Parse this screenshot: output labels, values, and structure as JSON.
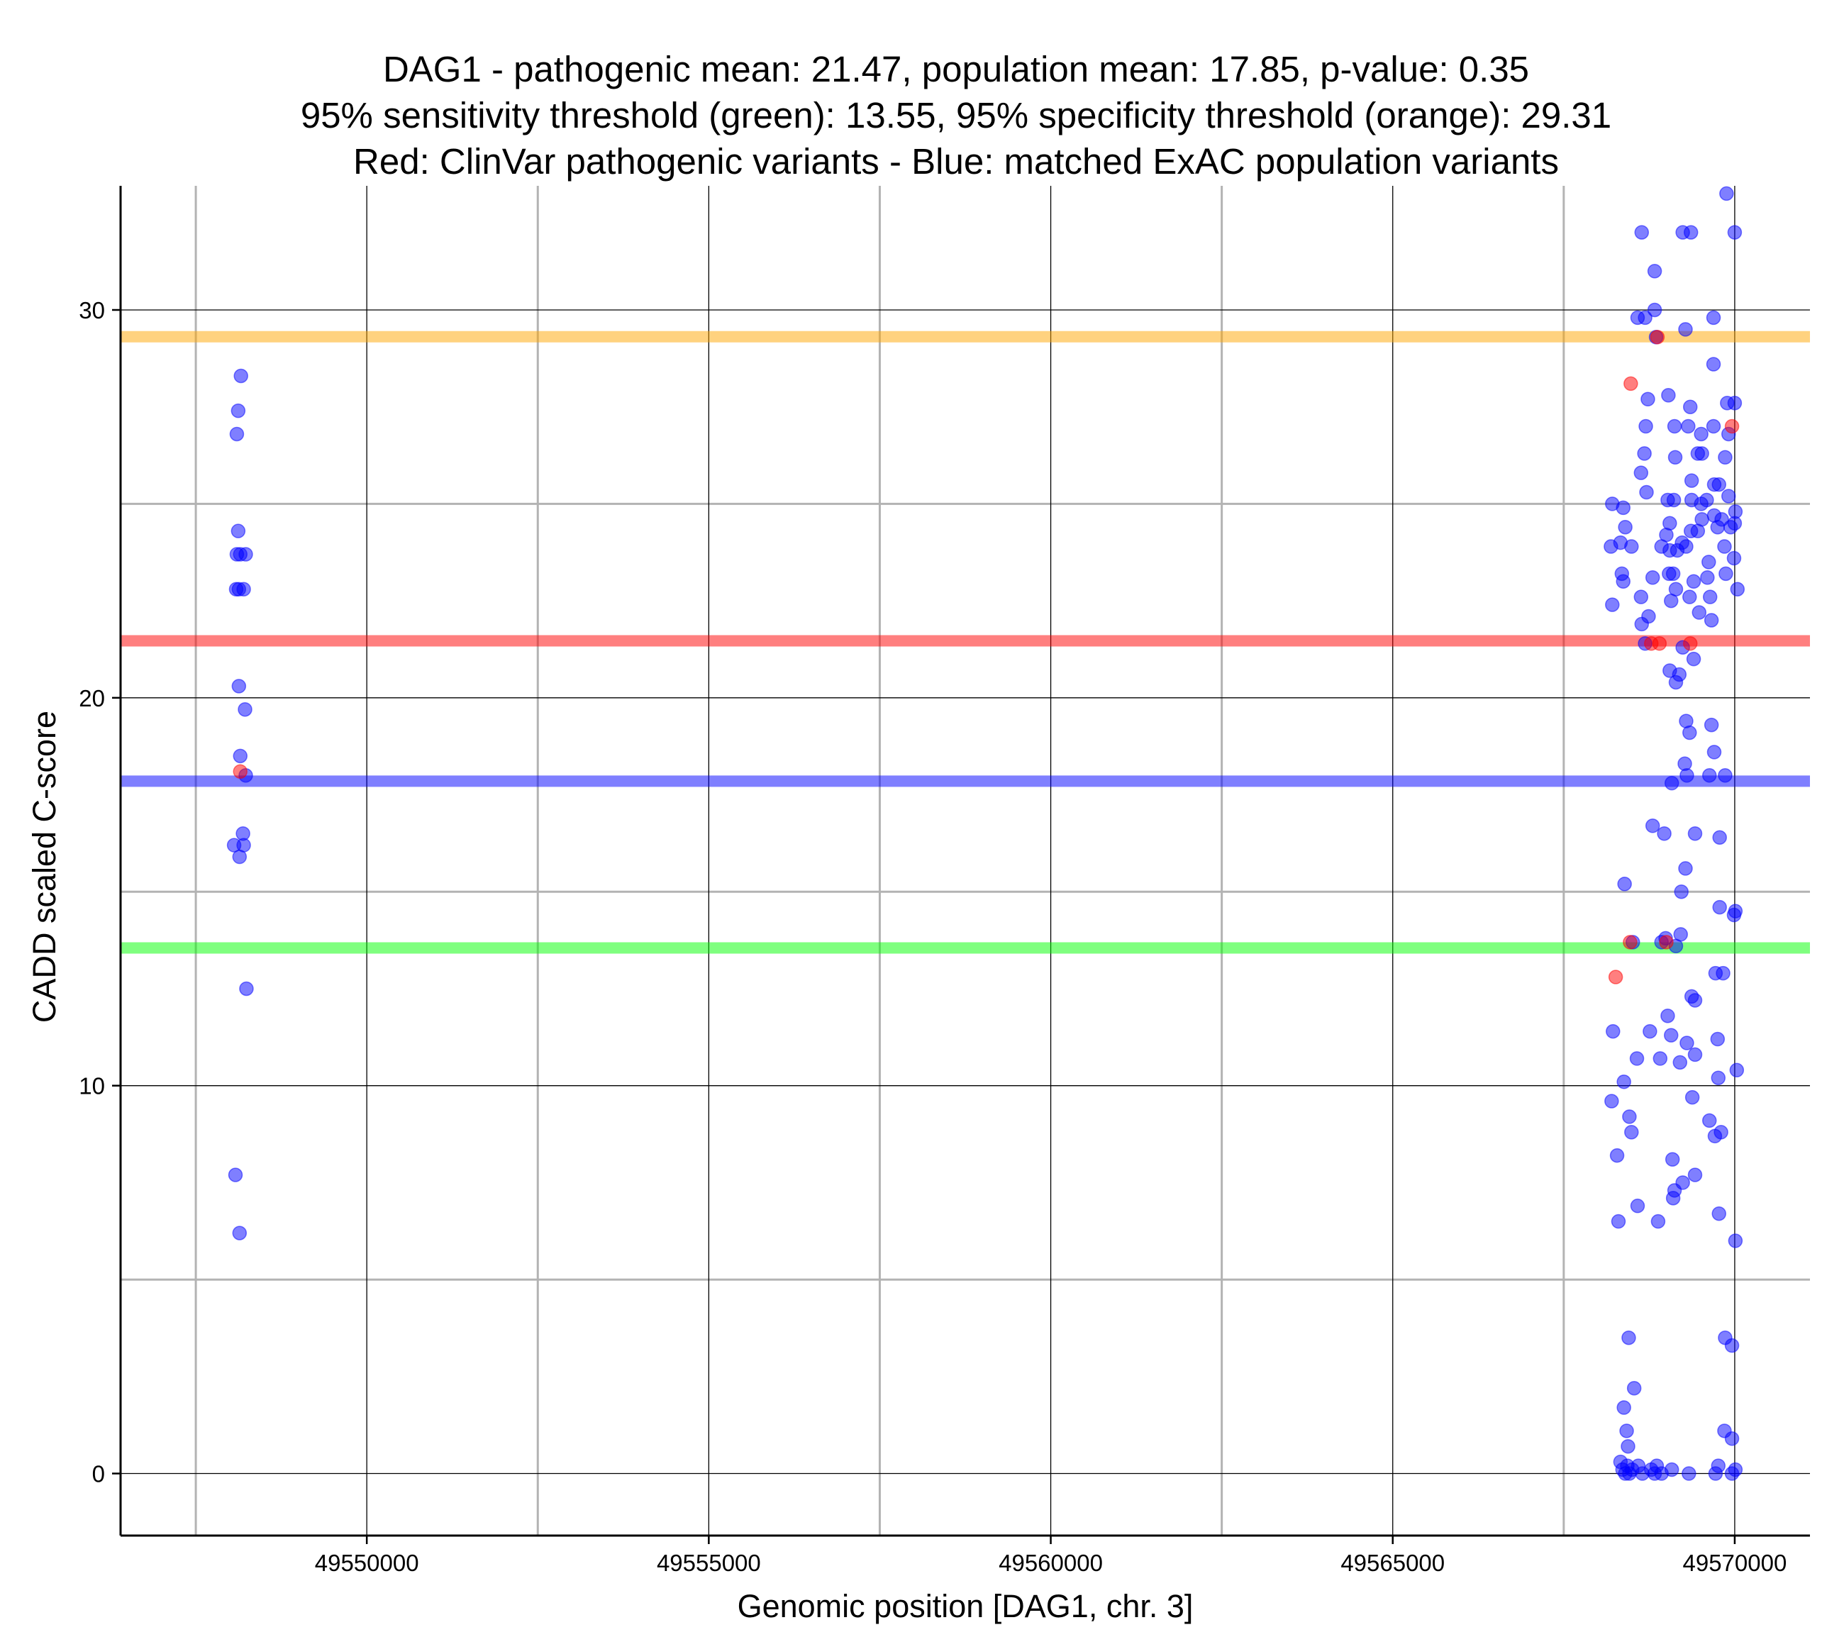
{
  "chart_data": {
    "type": "scatter",
    "title_lines": [
      "DAG1 - pathogenic mean: 21.47, population mean: 17.85, p-value: 0.35",
      "95% sensitivity threshold (green): 13.55, 95% specificity threshold (orange): 29.31",
      "Red: ClinVar pathogenic variants - Blue: matched ExAC population variants"
    ],
    "xlabel": "Genomic position [DAG1, chr. 3]",
    "ylabel": "CADD scaled C-score",
    "xlim": [
      49546400,
      49571100
    ],
    "ylim": [
      -1.6,
      33.2
    ],
    "x_ticks": [
      49550000,
      49555000,
      49560000,
      49565000,
      49570000
    ],
    "x_tick_labels": [
      "49550000",
      "49555000",
      "49560000",
      "49565000",
      "49570000"
    ],
    "x_minor_ticks": [
      49547500,
      49552500,
      49557500,
      49562500,
      49567500
    ],
    "y_ticks": [
      0,
      10,
      20,
      30
    ],
    "y_tick_labels": [
      "0",
      "10",
      "20",
      "30"
    ],
    "y_minor_ticks": [
      5,
      15,
      25
    ],
    "hlines": [
      {
        "name": "specificity-threshold",
        "value": 29.31,
        "color": "#FFA500"
      },
      {
        "name": "pathogenic-mean",
        "value": 21.47,
        "color": "#FF0000"
      },
      {
        "name": "population-mean",
        "value": 17.85,
        "color": "#0000FF"
      },
      {
        "name": "sensitivity-threshold",
        "value": 13.55,
        "color": "#00FF00"
      }
    ],
    "series": [
      {
        "name": "ClinVar pathogenic variants",
        "color": "#FF0000",
        "points": [
          [
            49548150,
            18.1
          ],
          [
            49568480,
            28.1
          ],
          [
            49568260,
            12.8
          ],
          [
            49568780,
            21.4
          ],
          [
            49568900,
            21.4
          ],
          [
            49569350,
            21.4
          ],
          [
            49569960,
            27.0
          ],
          [
            49568870,
            29.3
          ],
          [
            49568470,
            13.7
          ],
          [
            49569000,
            13.7
          ]
        ]
      },
      {
        "name": "matched ExAC population variants",
        "color": "#0000FF",
        "points": [
          [
            49548160,
            28.3
          ],
          [
            49548120,
            27.4
          ],
          [
            49548100,
            26.8
          ],
          [
            49548120,
            24.3
          ],
          [
            49548100,
            23.7
          ],
          [
            49548150,
            23.7
          ],
          [
            49548230,
            23.7
          ],
          [
            49548090,
            22.8
          ],
          [
            49548130,
            22.8
          ],
          [
            49548200,
            22.8
          ],
          [
            49548130,
            20.3
          ],
          [
            49548220,
            19.7
          ],
          [
            49548150,
            18.5
          ],
          [
            49548230,
            18.0
          ],
          [
            49548190,
            16.5
          ],
          [
            49548060,
            16.2
          ],
          [
            49548200,
            16.2
          ],
          [
            49548140,
            15.9
          ],
          [
            49548240,
            12.5
          ],
          [
            49548080,
            7.7
          ],
          [
            49548140,
            6.2
          ],
          [
            49570000,
            32.0
          ],
          [
            49569880,
            33.0
          ],
          [
            49568640,
            32.0
          ],
          [
            49569240,
            32.0
          ],
          [
            49569360,
            32.0
          ],
          [
            49568830,
            31.0
          ],
          [
            49568830,
            30.0
          ],
          [
            49568580,
            29.8
          ],
          [
            49568690,
            29.8
          ],
          [
            49569280,
            29.5
          ],
          [
            49569690,
            29.8
          ],
          [
            49568850,
            29.3
          ],
          [
            49569690,
            28.6
          ],
          [
            49568730,
            27.7
          ],
          [
            49569030,
            27.8
          ],
          [
            49569350,
            27.5
          ],
          [
            49569890,
            27.6
          ],
          [
            49570000,
            27.6
          ],
          [
            49568700,
            27.0
          ],
          [
            49569120,
            27.0
          ],
          [
            49569320,
            27.0
          ],
          [
            49569510,
            26.8
          ],
          [
            49569690,
            27.0
          ],
          [
            49569910,
            26.8
          ],
          [
            49568680,
            26.3
          ],
          [
            49569130,
            26.2
          ],
          [
            49569460,
            26.3
          ],
          [
            49569520,
            26.3
          ],
          [
            49569860,
            26.2
          ],
          [
            49568630,
            25.8
          ],
          [
            49569370,
            25.6
          ],
          [
            49569700,
            25.5
          ],
          [
            49568710,
            25.3
          ],
          [
            49569770,
            25.5
          ],
          [
            49568210,
            25.0
          ],
          [
            49568370,
            24.9
          ],
          [
            49569020,
            25.1
          ],
          [
            49569110,
            25.1
          ],
          [
            49569370,
            25.1
          ],
          [
            49569510,
            25.0
          ],
          [
            49569590,
            25.1
          ],
          [
            49569910,
            25.2
          ],
          [
            49568400,
            24.4
          ],
          [
            49569050,
            24.5
          ],
          [
            49569520,
            24.6
          ],
          [
            49569700,
            24.7
          ],
          [
            49569810,
            24.6
          ],
          [
            49570010,
            24.8
          ],
          [
            49569000,
            24.2
          ],
          [
            49569230,
            24.0
          ],
          [
            49569360,
            24.3
          ],
          [
            49569460,
            24.3
          ],
          [
            49569750,
            24.4
          ],
          [
            49569940,
            24.4
          ],
          [
            49570000,
            24.5
          ],
          [
            49568190,
            23.9
          ],
          [
            49568330,
            24.0
          ],
          [
            49568490,
            23.9
          ],
          [
            49568930,
            23.9
          ],
          [
            49569050,
            23.8
          ],
          [
            49569160,
            23.8
          ],
          [
            49569290,
            23.9
          ],
          [
            49569620,
            23.5
          ],
          [
            49569850,
            23.9
          ],
          [
            49569990,
            23.6
          ],
          [
            49568350,
            23.2
          ],
          [
            49568370,
            23.0
          ],
          [
            49568800,
            23.1
          ],
          [
            49569040,
            23.2
          ],
          [
            49569100,
            23.2
          ],
          [
            49569400,
            23.0
          ],
          [
            49569600,
            23.1
          ],
          [
            49569870,
            23.2
          ],
          [
            49568630,
            22.6
          ],
          [
            49569140,
            22.8
          ],
          [
            49569340,
            22.6
          ],
          [
            49569640,
            22.6
          ],
          [
            49570040,
            22.8
          ],
          [
            49568210,
            22.4
          ],
          [
            49568740,
            22.1
          ],
          [
            49569070,
            22.5
          ],
          [
            49569480,
            22.2
          ],
          [
            49569660,
            22.0
          ],
          [
            49568640,
            21.9
          ],
          [
            49568690,
            21.4
          ],
          [
            49569240,
            21.3
          ],
          [
            49569400,
            21.0
          ],
          [
            49569050,
            20.7
          ],
          [
            49569190,
            20.6
          ],
          [
            49569140,
            20.4
          ],
          [
            49569290,
            19.4
          ],
          [
            49569660,
            19.3
          ],
          [
            49569340,
            19.1
          ],
          [
            49569700,
            18.6
          ],
          [
            49569270,
            18.3
          ],
          [
            49569300,
            18.0
          ],
          [
            49569630,
            18.0
          ],
          [
            49569860,
            18.0
          ],
          [
            49569080,
            17.8
          ],
          [
            49568800,
            16.7
          ],
          [
            49568970,
            16.5
          ],
          [
            49569420,
            16.5
          ],
          [
            49569780,
            16.4
          ],
          [
            49569280,
            15.6
          ],
          [
            49568390,
            15.2
          ],
          [
            49569220,
            15.0
          ],
          [
            49569780,
            14.6
          ],
          [
            49570010,
            14.5
          ],
          [
            49569990,
            14.4
          ],
          [
            49568510,
            13.7
          ],
          [
            49568990,
            13.8
          ],
          [
            49569210,
            13.9
          ],
          [
            49569140,
            13.6
          ],
          [
            49568930,
            13.7
          ],
          [
            49569720,
            12.9
          ],
          [
            49569830,
            12.9
          ],
          [
            49569370,
            12.3
          ],
          [
            49569420,
            12.2
          ],
          [
            49568220,
            11.4
          ],
          [
            49568760,
            11.4
          ],
          [
            49569020,
            11.8
          ],
          [
            49569070,
            11.3
          ],
          [
            49569300,
            11.1
          ],
          [
            49569750,
            11.2
          ],
          [
            49568570,
            10.7
          ],
          [
            49568910,
            10.7
          ],
          [
            49569200,
            10.6
          ],
          [
            49569420,
            10.8
          ],
          [
            49570030,
            10.4
          ],
          [
            49568380,
            10.1
          ],
          [
            49569760,
            10.2
          ],
          [
            49568200,
            9.6
          ],
          [
            49569380,
            9.7
          ],
          [
            49568460,
            9.2
          ],
          [
            49569630,
            9.1
          ],
          [
            49568490,
            8.8
          ],
          [
            49569800,
            8.8
          ],
          [
            49569710,
            8.7
          ],
          [
            49568280,
            8.2
          ],
          [
            49569090,
            8.1
          ],
          [
            49569420,
            7.7
          ],
          [
            49569120,
            7.3
          ],
          [
            49569240,
            7.5
          ],
          [
            49569100,
            7.1
          ],
          [
            49568580,
            6.9
          ],
          [
            49569770,
            6.7
          ],
          [
            49568300,
            6.5
          ],
          [
            49568880,
            6.5
          ],
          [
            49570010,
            6.0
          ],
          [
            49568450,
            3.5
          ],
          [
            49569860,
            3.5
          ],
          [
            49569960,
            3.3
          ],
          [
            49568530,
            2.2
          ],
          [
            49568380,
            1.7
          ],
          [
            49568420,
            1.1
          ],
          [
            49569850,
            1.1
          ],
          [
            49568440,
            0.7
          ],
          [
            49569960,
            0.9
          ],
          [
            49568330,
            0.3
          ],
          [
            49568360,
            0.1
          ],
          [
            49568400,
            0.0
          ],
          [
            49568430,
            0.2
          ],
          [
            49568460,
            0.0
          ],
          [
            49568500,
            0.1
          ],
          [
            49568590,
            0.2
          ],
          [
            49568650,
            0.0
          ],
          [
            49568780,
            0.1
          ],
          [
            49568830,
            0.0
          ],
          [
            49568860,
            0.2
          ],
          [
            49568930,
            0.0
          ],
          [
            49569080,
            0.1
          ],
          [
            49569330,
            0.0
          ],
          [
            49569720,
            0.0
          ],
          [
            49569760,
            0.2
          ],
          [
            49569960,
            0.0
          ],
          [
            49570010,
            0.1
          ]
        ]
      }
    ]
  }
}
